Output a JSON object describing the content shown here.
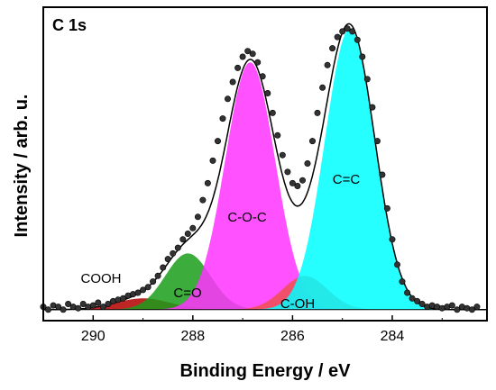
{
  "chart_data": {
    "type": "area",
    "title": "C 1s",
    "xlabel": "Binding Energy / eV",
    "ylabel": "Intensity / arb. u.",
    "x_reversed": true,
    "xlim": [
      291.0,
      282.1
    ],
    "ylim": [
      0.0,
      1.0
    ],
    "x_ticks": [
      290,
      288,
      286,
      284
    ],
    "x_tick_labels": [
      "290",
      "288",
      "286",
      "284"
    ],
    "baseline": 0.02,
    "components": [
      {
        "name": "COOH",
        "center": 289.0,
        "height": 0.04,
        "sigma": 0.55,
        "color": "#b30000"
      },
      {
        "name": "C=O",
        "center": 288.1,
        "height": 0.2,
        "sigma": 0.45,
        "color": "#1a9e1a"
      },
      {
        "name": "C-O-C",
        "center": 286.85,
        "height": 0.88,
        "sigma": 0.5,
        "color": "#ff33ff"
      },
      {
        "name": "C-OH",
        "center": 285.75,
        "height": 0.12,
        "sigma": 0.45,
        "color": "#f05050"
      },
      {
        "name": "C=C",
        "center": 284.85,
        "height": 1.0,
        "sigma": 0.5,
        "color": "#00ffff"
      }
    ],
    "experimental_points": [
      [
        291.0,
        0.03
      ],
      [
        290.9,
        0.02
      ],
      [
        290.8,
        0.035
      ],
      [
        290.7,
        0.03
      ],
      [
        290.6,
        0.02
      ],
      [
        290.5,
        0.04
      ],
      [
        290.4,
        0.03
      ],
      [
        290.3,
        0.025
      ],
      [
        290.2,
        0.04
      ],
      [
        290.1,
        0.03
      ],
      [
        290.0,
        0.035
      ],
      [
        289.9,
        0.045
      ],
      [
        289.8,
        0.03
      ],
      [
        289.7,
        0.04
      ],
      [
        289.6,
        0.05
      ],
      [
        289.5,
        0.055
      ],
      [
        289.4,
        0.06
      ],
      [
        289.3,
        0.07
      ],
      [
        289.2,
        0.075
      ],
      [
        289.1,
        0.08
      ],
      [
        289.0,
        0.09
      ],
      [
        288.9,
        0.1
      ],
      [
        288.8,
        0.12
      ],
      [
        288.7,
        0.14
      ],
      [
        288.6,
        0.17
      ],
      [
        288.5,
        0.2
      ],
      [
        288.4,
        0.22
      ],
      [
        288.3,
        0.24
      ],
      [
        288.2,
        0.27
      ],
      [
        288.1,
        0.29
      ],
      [
        288.0,
        0.31
      ],
      [
        287.9,
        0.35
      ],
      [
        287.8,
        0.41
      ],
      [
        287.7,
        0.47
      ],
      [
        287.6,
        0.55
      ],
      [
        287.5,
        0.62
      ],
      [
        287.4,
        0.7
      ],
      [
        287.3,
        0.77
      ],
      [
        287.2,
        0.83
      ],
      [
        287.1,
        0.88
      ],
      [
        287.0,
        0.92
      ],
      [
        286.9,
        0.94
      ],
      [
        286.8,
        0.93
      ],
      [
        286.7,
        0.9
      ],
      [
        286.6,
        0.85
      ],
      [
        286.5,
        0.79
      ],
      [
        286.4,
        0.72
      ],
      [
        286.3,
        0.64
      ],
      [
        286.2,
        0.57
      ],
      [
        286.1,
        0.51
      ],
      [
        286.0,
        0.47
      ],
      [
        285.9,
        0.46
      ],
      [
        285.8,
        0.48
      ],
      [
        285.7,
        0.54
      ],
      [
        285.6,
        0.62
      ],
      [
        285.5,
        0.72
      ],
      [
        285.4,
        0.81
      ],
      [
        285.3,
        0.89
      ],
      [
        285.2,
        0.95
      ],
      [
        285.1,
        0.99
      ],
      [
        285.0,
        1.01
      ],
      [
        284.9,
        1.02
      ],
      [
        284.8,
        1.01
      ],
      [
        284.7,
        0.98
      ],
      [
        284.6,
        0.92
      ],
      [
        284.5,
        0.84
      ],
      [
        284.4,
        0.74
      ],
      [
        284.3,
        0.62
      ],
      [
        284.2,
        0.5
      ],
      [
        284.1,
        0.38
      ],
      [
        284.0,
        0.27
      ],
      [
        283.9,
        0.18
      ],
      [
        283.8,
        0.12
      ],
      [
        283.7,
        0.08
      ],
      [
        283.6,
        0.06
      ],
      [
        283.5,
        0.05
      ],
      [
        283.4,
        0.04
      ],
      [
        283.3,
        0.03
      ],
      [
        283.2,
        0.035
      ],
      [
        283.1,
        0.03
      ],
      [
        283.0,
        0.025
      ],
      [
        282.9,
        0.03
      ],
      [
        282.8,
        0.035
      ],
      [
        282.7,
        0.02
      ],
      [
        282.6,
        0.03
      ],
      [
        282.5,
        0.025
      ],
      [
        282.4,
        0.02
      ],
      [
        282.3,
        0.03
      ]
    ]
  }
}
